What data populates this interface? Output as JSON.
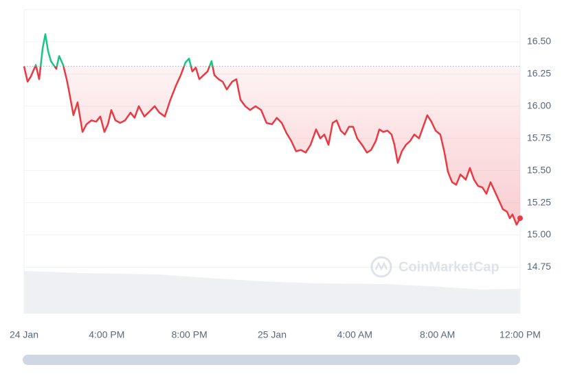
{
  "chart_data": {
    "type": "line",
    "x": [
      0,
      0.17,
      0.33,
      0.57,
      0.73,
      0.9,
      1.03,
      1.16,
      1.3,
      1.43,
      1.56,
      1.7,
      1.89,
      2.06,
      2.16,
      2.39,
      2.59,
      2.83,
      3.02,
      3.26,
      3.49,
      3.69,
      3.89,
      4.06,
      4.22,
      4.42,
      4.65,
      4.89,
      5.15,
      5.35,
      5.55,
      5.82,
      6.08,
      6.32,
      6.55,
      6.81,
      7.08,
      7.35,
      7.58,
      7.81,
      7.98,
      8.14,
      8.31,
      8.48,
      8.68,
      8.88,
      9.07,
      9.21,
      9.41,
      9.61,
      9.81,
      10.07,
      10.27,
      10.47,
      10.7,
      10.94,
      11.2,
      11.47,
      11.73,
      12,
      12.23,
      12.47,
      12.7,
      12.93,
      13.16,
      13.4,
      13.63,
      13.86,
      14.13,
      14.33,
      14.53,
      14.73,
      14.93,
      15.12,
      15.32,
      15.52,
      15.72,
      15.92,
      16.12,
      16.35,
      16.59,
      16.79,
      17.02,
      17.19,
      17.38,
      17.58,
      17.78,
      17.92,
      18.08,
      18.28,
      18.48,
      18.68,
      18.88,
      19.11,
      19.31,
      19.51,
      19.71,
      19.91,
      20.14,
      20.34,
      20.51,
      20.71,
      20.91,
      21.11,
      21.37,
      21.57,
      21.77,
      21.97,
      22.17,
      22.37,
      22.57,
      22.77,
      22.97,
      23.17,
      23.37,
      23.5,
      23.63,
      23.83,
      24
    ],
    "series": [
      {
        "color": "#ea3943",
        "up_color": "#16c784",
        "values": [
          16.31,
          16.19,
          16.23,
          16.32,
          16.21,
          16.45,
          16.56,
          16.43,
          16.35,
          16.32,
          16.29,
          16.39,
          16.32,
          16.21,
          16.13,
          15.93,
          16.03,
          15.8,
          15.86,
          15.89,
          15.88,
          15.92,
          15.8,
          15.86,
          15.97,
          15.89,
          15.87,
          15.89,
          15.95,
          15.91,
          16,
          15.92,
          15.96,
          16,
          15.95,
          15.92,
          16.05,
          16.16,
          16.24,
          16.34,
          16.37,
          16.27,
          16.3,
          16.21,
          16.24,
          16.27,
          16.35,
          16.24,
          16.21,
          16.19,
          16.13,
          16.19,
          16.21,
          16.05,
          16,
          15.97,
          16,
          15.97,
          15.87,
          15.86,
          15.91,
          15.87,
          15.79,
          15.73,
          15.65,
          15.66,
          15.64,
          15.7,
          15.82,
          15.75,
          15.78,
          15.7,
          15.87,
          15.89,
          15.81,
          15.78,
          15.84,
          15.84,
          15.75,
          15.7,
          15.64,
          15.66,
          15.73,
          15.82,
          15.8,
          15.81,
          15.78,
          15.7,
          15.56,
          15.65,
          15.7,
          15.73,
          15.78,
          15.75,
          15.84,
          15.93,
          15.88,
          15.81,
          15.78,
          15.64,
          15.49,
          15.41,
          15.39,
          15.47,
          15.43,
          15.52,
          15.43,
          15.38,
          15.37,
          15.32,
          15.41,
          15.34,
          15.27,
          15.2,
          15.18,
          15.13,
          15.16,
          15.08,
          15.13
        ]
      }
    ],
    "baseline": 16.31,
    "xlim": [
      0,
      24
    ],
    "xticks": [
      {
        "value": 0,
        "label": "24 Jan"
      },
      {
        "value": 4,
        "label": "4:00 PM"
      },
      {
        "value": 8,
        "label": "8:00 PM"
      },
      {
        "value": 12,
        "label": "25 Jan"
      },
      {
        "value": 16,
        "label": "4:00 AM"
      },
      {
        "value": 20,
        "label": "8:00 AM"
      },
      {
        "value": 24,
        "label": "12:00 PM"
      }
    ],
    "ylim": [
      14.39,
      16.75
    ],
    "yticks": [
      14.75,
      {
        "value": 15,
        "label": "15.00"
      },
      15.25,
      {
        "value": 15.5,
        "label": "15.50"
      },
      15.75,
      {
        "value": 16,
        "label": "16.00"
      },
      16.25,
      {
        "value": 16.5,
        "label": "16.50"
      }
    ],
    "grid": true,
    "watermark": "CoinMarketCap"
  }
}
